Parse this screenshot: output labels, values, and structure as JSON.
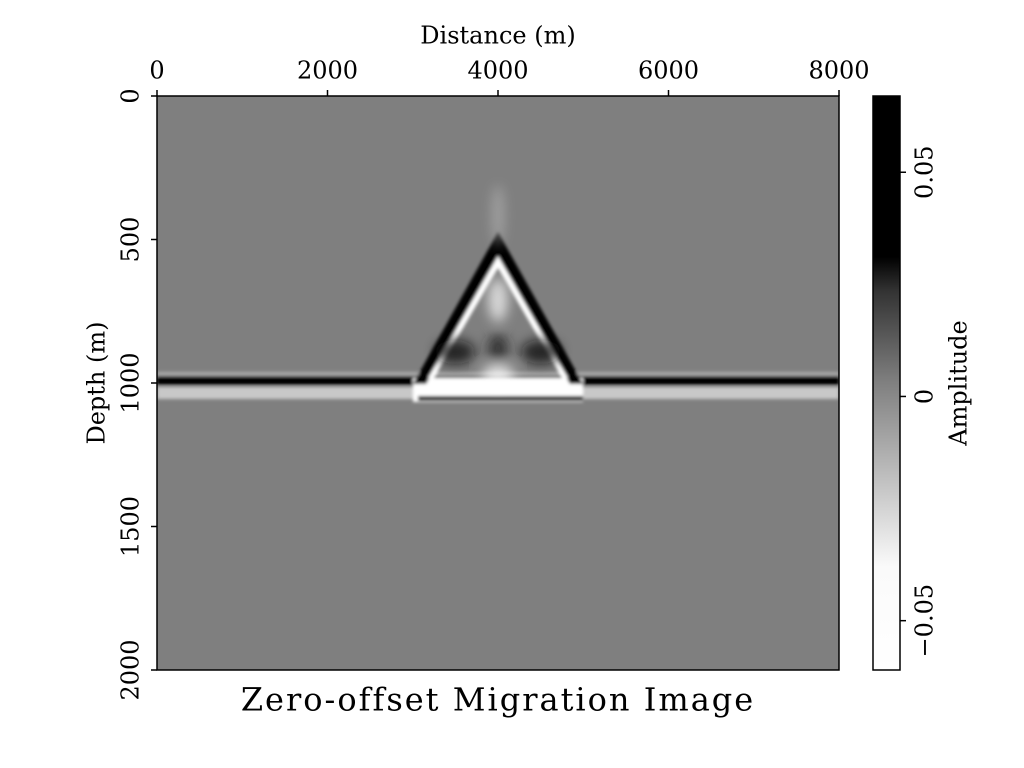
{
  "chart_data": {
    "type": "heatmap",
    "title": "Zero-offset Migration Image",
    "x_label": "Distance (m)",
    "y_label": "Depth (m)",
    "colorbar_label": "Amplitude",
    "xlim": [
      0,
      8000
    ],
    "xticks": [
      0,
      2000,
      4000,
      6000,
      8000
    ],
    "ylim": [
      0,
      2000
    ],
    "yticks": [
      0,
      500,
      1000,
      1500,
      2000
    ],
    "y_inverted": true,
    "clim": [
      -0.061,
      0.067
    ],
    "cticks": [
      {
        "value": -0.05,
        "label": "−0.05"
      },
      0,
      0.05
    ]
  }
}
